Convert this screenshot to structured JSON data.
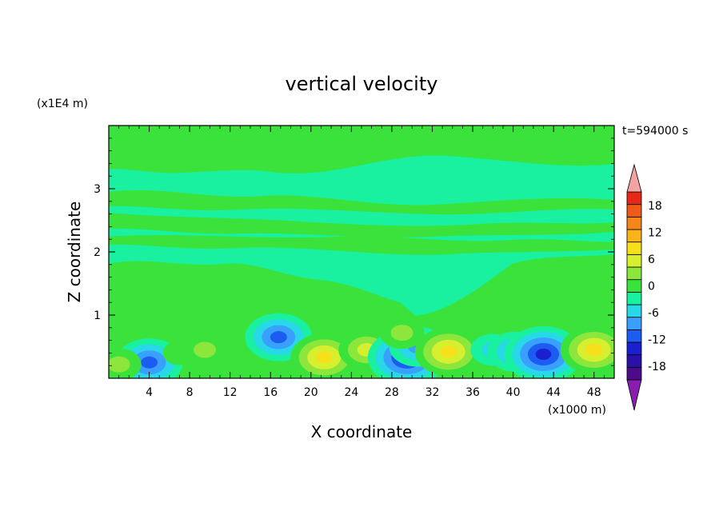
{
  "chart_data": {
    "type": "heatmap",
    "title": "vertical velocity",
    "xlabel": "X coordinate",
    "ylabel": "Z coordinate",
    "x_unit": "(x1000 m)",
    "y_unit": "(x1E4 m)",
    "time_label": "t=594000 s",
    "xlim": [
      0,
      50
    ],
    "ylim": [
      0,
      4
    ],
    "x_ticks": [
      4,
      8,
      12,
      16,
      20,
      24,
      28,
      32,
      36,
      40,
      44,
      48
    ],
    "y_ticks": [
      1,
      2,
      3
    ],
    "colorbar": {
      "levels": [
        -21,
        -18,
        -15,
        -12,
        -9,
        -6,
        -3,
        0,
        3,
        6,
        9,
        12,
        15,
        18,
        21
      ],
      "colors": [
        "#4b0b8a",
        "#2a0fa8",
        "#1a1fd0",
        "#1c5cf0",
        "#3aa0ff",
        "#28d8e8",
        "#19f0a0",
        "#3ce23c",
        "#8ce63c",
        "#d6f030",
        "#f6e01c",
        "#f8b41a",
        "#f4861a",
        "#f05a18",
        "#e62818"
      ],
      "under_color": "#8a1cb0",
      "over_color": "#f4a3a3",
      "tick_labels": [
        "18",
        "12",
        "6",
        "0",
        "-6",
        "-12",
        "-18"
      ],
      "tick_values": [
        18,
        12,
        6,
        0,
        -6,
        -12,
        -18
      ]
    },
    "features": [
      {
        "x": 4.0,
        "z": 0.25,
        "value": -10
      },
      {
        "x": 1.0,
        "z": 0.22,
        "value": 4
      },
      {
        "x": 7.0,
        "z": 0.4,
        "value": 3
      },
      {
        "x": 9.5,
        "z": 0.45,
        "value": 4
      },
      {
        "x": 13.0,
        "z": 0.35,
        "value": 3
      },
      {
        "x": 16.8,
        "z": 0.65,
        "value": -12
      },
      {
        "x": 21.3,
        "z": 0.33,
        "value": 11
      },
      {
        "x": 25.5,
        "z": 0.45,
        "value": 8
      },
      {
        "x": 29.5,
        "z": 0.33,
        "value": -14
      },
      {
        "x": 30.5,
        "z": 0.5,
        "value": -9
      },
      {
        "x": 29.0,
        "z": 0.72,
        "value": 4
      },
      {
        "x": 33.6,
        "z": 0.42,
        "value": 10
      },
      {
        "x": 38.0,
        "z": 0.45,
        "value": -4
      },
      {
        "x": 40.2,
        "z": 0.42,
        "value": -9
      },
      {
        "x": 43.0,
        "z": 0.38,
        "value": -13
      },
      {
        "x": 48.0,
        "z": 0.45,
        "value": 10
      }
    ]
  }
}
